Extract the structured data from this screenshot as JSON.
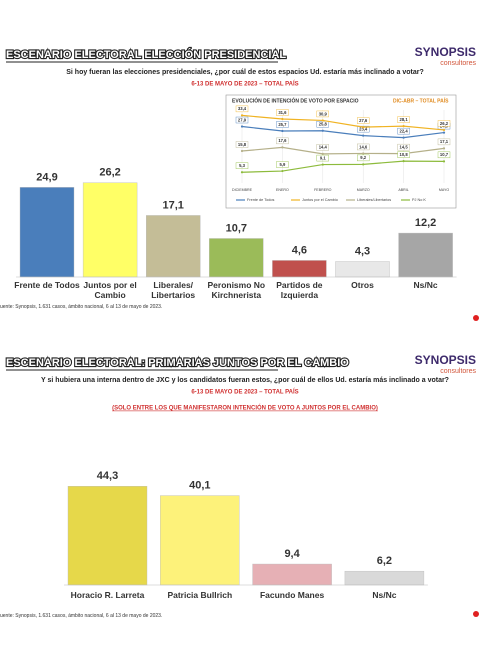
{
  "chart_data": [
    {
      "type": "bar",
      "title": "ESCENARIO ELECTORAL ELECCIÓN PRESIDENCIAL",
      "brand": "SYNOPSIS",
      "brand_sub": "consultores",
      "question": "Si hoy fueran las elecciones presidenciales, ¿por cuál de estos espacios Ud. estaría más inclinado a votar?",
      "subtitle": "6-13 DE MAYO DE 2023 – TOTAL PAÍS",
      "categories": [
        "Frente de Todos",
        "Juntos por el Cambio",
        "Liberales/ Libertarios",
        "Peronismo No Kirchnerista",
        "Partidos de Izquierda",
        "Otros",
        "Ns/Nc"
      ],
      "values": [
        24.9,
        26.2,
        17.1,
        10.7,
        4.6,
        4.3,
        12.2
      ],
      "value_labels": [
        "24,9",
        "26,2",
        "17,1",
        "10,7",
        "4,6",
        "4,3",
        "12,2"
      ],
      "colors": [
        "#4a7ebb",
        "#ffff66",
        "#c4bd97",
        "#9bbb59",
        "#c0504d",
        "#e8e8e8",
        "#a6a6a6"
      ],
      "source": "uente: Synopsis, 1.631 casos, ámbito nacional, 6 al 13 de mayo de 2023."
    },
    {
      "type": "line",
      "title": "EVOLUCIÓN DE INTENCIÓN DE VOTO POR ESPACIO",
      "title_note": "DIC-ABR – TOTAL PAÍS",
      "categories": [
        "DICIEMBRE",
        "ENERO",
        "FEBRERO",
        "MARZO",
        "ABRIL",
        "MAYO"
      ],
      "series": [
        {
          "name": "Frente de Todos",
          "color": "#4a7ebb",
          "values": [
            27.9,
            25.7,
            25.8,
            23.4,
            22.4,
            24.9
          ],
          "value_labels": [
            "27,9",
            "25,7",
            "25,8",
            "23,4",
            "22,4",
            "24,9"
          ]
        },
        {
          "name": "Juntos por el Cambio",
          "color": "#f0b323",
          "values": [
            33.4,
            31.6,
            30.9,
            27.6,
            28.1,
            26.2
          ],
          "value_labels": [
            "33,4",
            "31,6",
            "30,9",
            "27,6",
            "28,1",
            "26,2"
          ]
        },
        {
          "name": "Liberales/Libertarios",
          "color": "#b5b08a",
          "values": [
            15.8,
            17.6,
            14.4,
            14.6,
            14.5,
            17.1
          ],
          "value_labels": [
            "15,8",
            "17,6",
            "14,4",
            "14,6",
            "14,5",
            "17,1"
          ]
        },
        {
          "name": "PJ No K",
          "color": "#8dbb3c",
          "values": [
            5.3,
            5.9,
            9.1,
            9.2,
            10.8,
            10.7
          ],
          "value_labels": [
            "5,3",
            "5,9",
            "9,1",
            "9,2",
            "10,8",
            "10,7"
          ]
        }
      ]
    },
    {
      "type": "bar",
      "title": "ESCENARIO ELECTORAL: PRIMARIAS JUNTOS POR EL CAMBIO",
      "brand": "SYNOPSIS",
      "brand_sub": "consultores",
      "question": "Y si hubiera una interna dentro de JXC y los candidatos fueran estos, ¿por cuál de ellos Ud. estaría más inclinado a votar?",
      "subtitle": "6-13 DE MAYO DE 2023 – TOTAL PAÍS",
      "note": "(SOLO ENTRE LOS QUE MANIFESTARON INTENCIÓN DE VOTO A JUNTOS POR EL CAMBIO)",
      "categories": [
        "Horacio R. Larreta",
        "Patricia Bullrich",
        "Facundo Manes",
        "Ns/Nc"
      ],
      "values": [
        44.3,
        40.1,
        9.4,
        6.2
      ],
      "value_labels": [
        "44,3",
        "40,1",
        "9,4",
        "6,2"
      ],
      "colors": [
        "#e6d84a",
        "#fdf27a",
        "#e6b0b5",
        "#d9d9d9"
      ],
      "source": "uente: Synopsis, 1.631 casos, ámbito nacional, 6 al 13 de mayo de 2023."
    }
  ]
}
